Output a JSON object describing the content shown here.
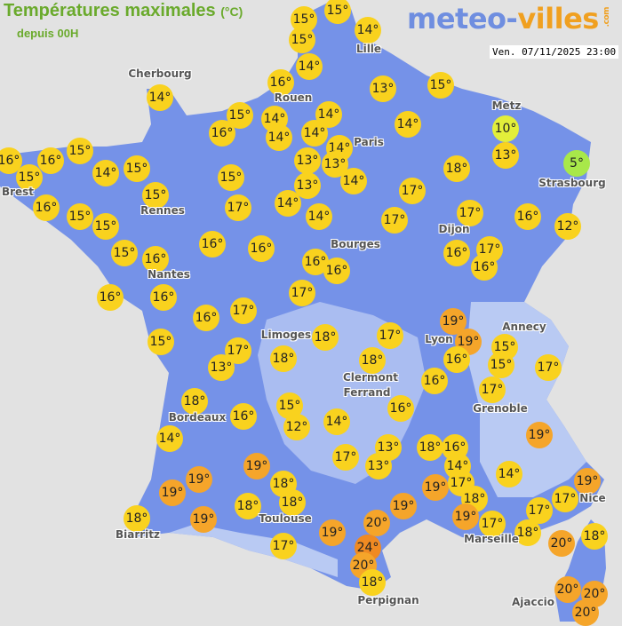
{
  "header": {
    "title": "Températures maximales",
    "title_unit": "(°C)",
    "subtitle": "depuis 00H",
    "logo_main": "meteo-",
    "logo_accent": "villes",
    "logo_suffix": ".com",
    "datetime": "Ven. 07/11/2025 23:00"
  },
  "colors": {
    "land": "#7592e8",
    "land_light": "#b8c8f2",
    "background": "#e2e2e2",
    "temp_5": "#a8e84a",
    "temp_10": "#e2ef3a",
    "temp_12_18": "#f9d21e",
    "temp_19_20": "#f5a52a",
    "temp_24": "#f08a22"
  },
  "cities": [
    "Cherbourg",
    "Lille",
    "Rouen",
    "Paris",
    "Metz",
    "Strasbourg",
    "Brest",
    "Rennes",
    "Nantes",
    "Bourges",
    "Dijon",
    "Limoges",
    "Clermont",
    "Ferrand",
    "Lyon",
    "Annecy",
    "Grenoble",
    "Bordeaux",
    "Toulouse",
    "Biarritz",
    "Marseille",
    "Perpignan",
    "Nice",
    "Ajaccio"
  ],
  "temperatures": [
    15,
    15,
    15,
    14,
    14,
    16,
    13,
    15,
    14,
    15,
    14,
    14,
    16,
    14,
    14,
    14,
    14,
    10,
    16,
    15,
    16,
    15,
    14,
    15,
    15,
    13,
    13,
    14,
    18,
    13,
    5,
    16,
    15,
    15,
    15,
    17,
    14,
    13,
    14,
    17,
    17,
    17,
    16,
    12,
    15,
    16,
    16,
    16,
    16,
    16,
    16,
    17,
    16,
    16,
    16,
    17,
    16,
    17,
    15,
    18,
    19,
    19,
    16,
    15,
    15,
    17,
    17,
    13,
    18,
    17,
    18,
    16,
    17,
    18,
    16,
    15,
    12,
    14,
    16,
    14,
    13,
    13,
    17,
    18,
    16,
    14,
    14,
    19,
    19,
    18,
    19,
    19,
    19,
    18,
    18,
    19,
    19,
    17,
    18,
    19,
    17,
    17,
    17,
    19,
    18,
    19,
    20,
    24,
    20,
    18,
    17,
    18,
    20,
    18,
    20,
    20,
    20
  ]
}
